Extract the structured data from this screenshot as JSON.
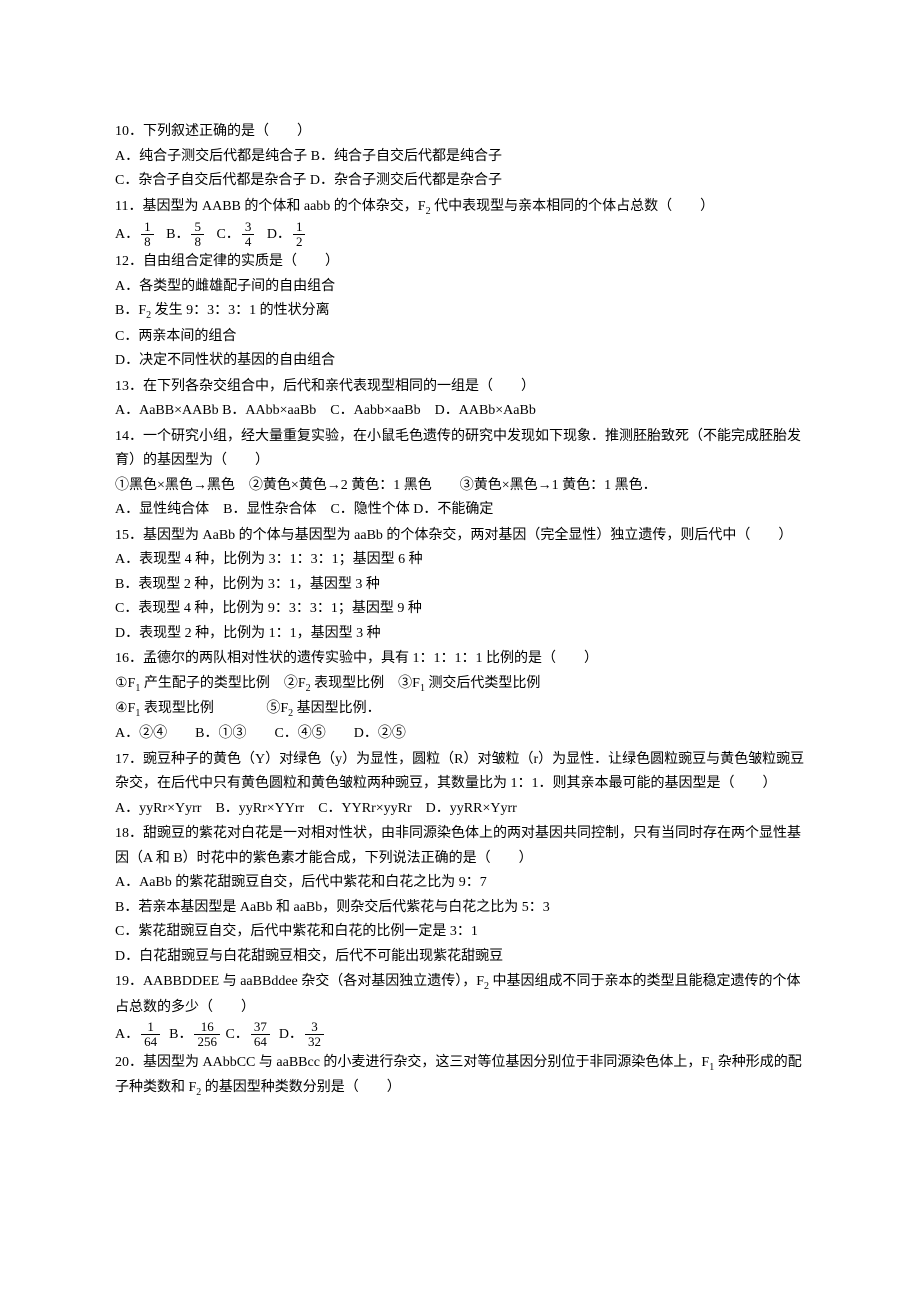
{
  "q10": {
    "stem": "10．下列叙述正确的是（　　）",
    "optA": "A．纯合子测交后代都是纯合子 B．纯合子自交后代都是纯合子",
    "optC": "C．杂合子自交后代都是杂合子 D．杂合子测交后代都是杂合子"
  },
  "q11": {
    "stem": "11．基因型为 AABB 的个体和 aabb 的个体杂交，F",
    "stem_sub": "2",
    "stem_after": " 代中表现型与亲本相同的个体占总数（　　）",
    "optA_label": "A．",
    "optA_num": "1",
    "optA_den": "8",
    "optB_label": "B．",
    "optB_num": "5",
    "optB_den": "8",
    "optC_label": "C．",
    "optC_num": "3",
    "optC_den": "4",
    "optD_label": "D．",
    "optD_num": "1",
    "optD_den": "2"
  },
  "q12": {
    "stem": "12．自由组合定律的实质是（　　）",
    "optA": "A．各类型的雌雄配子间的自由组合",
    "optB_before": "B．F",
    "optB_sub": "2",
    "optB_after": " 发生 9：3：3：1 的性状分离",
    "optC": "C．两亲本间的组合",
    "optD": "D．决定不同性状的基因的自由组合"
  },
  "q13": {
    "stem": "13．在下列各杂交组合中，后代和亲代表现型相同的一组是（　　）",
    "opts": "A．AaBB×AABb B．AAbb×aaBb　C．Aabb×aaBb　D．AABb×AaBb"
  },
  "q14": {
    "stem1": "14．一个研究小组，经大量重复实验，在小鼠毛色遗传的研究中发现如下现象．推测胚胎致死（不能完成胚胎发育）的基因型为（　　）",
    "line2": "①黑色×黑色→黑色　②黄色×黄色→2 黄色：1 黑色　　③黄色×黑色→1 黄色：1 黑色．",
    "opts": "A．显性纯合体　B．显性杂合体　C．隐性个体 D．不能确定"
  },
  "q15": {
    "stem": "15．基因型为 AaBb 的个体与基因型为 aaBb 的个体杂交，两对基因（完全显性）独立遗传，则后代中（　　）",
    "optA": "A．表现型 4 种，比例为 3：1：3：1；基因型 6 种",
    "optB": "B．表现型 2 种，比例为 3：1，基因型 3 种",
    "optC": "C．表现型 4 种，比例为 9：3：3：1；基因型 9 种",
    "optD": "D．表现型 2 种，比例为 1：1，基因型 3 种"
  },
  "q16": {
    "stem": "16．孟德尔的两队相对性状的遗传实验中，具有 1：1：1：1 比例的是（　　）",
    "c1_before": "①F",
    "c1_sub": "1",
    "c1_after": " 产生配子的类型比例",
    "c2_before": "②F",
    "c2_sub": "2",
    "c2_after": " 表现型比例",
    "c3_before": "③F",
    "c3_sub": "1",
    "c3_after": " 测交后代类型比例",
    "c4_before": "④F",
    "c4_sub": "1",
    "c4_after": " 表现型比例",
    "c5_before": "⑤F",
    "c5_sub": "2",
    "c5_after": " 基因型比例．",
    "opts": "A．②④　　B．①③　　C．④⑤　　D．②⑤"
  },
  "q17": {
    "stem": "17．豌豆种子的黄色（Y）对绿色（y）为显性，圆粒（R）对皱粒（r）为显性．让绿色圆粒豌豆与黄色皱粒豌豆杂交，在后代中只有黄色圆粒和黄色皱粒两种豌豆，其数量比为 1：1．则其亲本最可能的基因型是（　　）",
    "opts": "A．yyRr×Yyrr　B．yyRr×YYrr　C．YYRr×yyRr　D．yyRR×Yyrr"
  },
  "q18": {
    "stem": "18．甜豌豆的紫花对白花是一对相对性状，由非同源染色体上的两对基因共同控制，只有当同时存在两个显性基因（A 和 B）时花中的紫色素才能合成，下列说法正确的是（　　）",
    "optA": "A．AaBb 的紫花甜豌豆自交，后代中紫花和白花之比为 9：7",
    "optB": "B．若亲本基因型是 AaBb 和 aaBb，则杂交后代紫花与白花之比为 5：3",
    "optC": "C．紫花甜豌豆自交，后代中紫花和白花的比例一定是 3：1",
    "optD": "D．白花甜豌豆与白花甜豌豆相交，后代不可能出现紫花甜豌豆"
  },
  "q19": {
    "stem_before": "19．AABBDDEE 与 aaBBddee 杂交（各对基因独立遗传），F",
    "stem_sub": "2",
    "stem_after": " 中基因组成不同于亲本的类型且能稳定遗传的个体占总数的多少（　　）",
    "optA_label": "A．",
    "optA_num": "1",
    "optA_den": "64",
    "optB_label": "B．",
    "optB_num": "16",
    "optB_den": "256",
    "optC_label": "C．",
    "optC_num": "37",
    "optC_den": "64",
    "optD_label": "D．",
    "optD_num": "3",
    "optD_den": "32"
  },
  "q20": {
    "stem_before": "20．基因型为 AAbbCC 与 aaBBcc 的小麦进行杂交，这三对等位基因分别位于非同源染色体上，F",
    "stem_sub1": "1",
    "stem_mid": " 杂种形成的配子种类数和 F",
    "stem_sub2": "2",
    "stem_after": " 的基因型种类数分别是（　　）"
  }
}
